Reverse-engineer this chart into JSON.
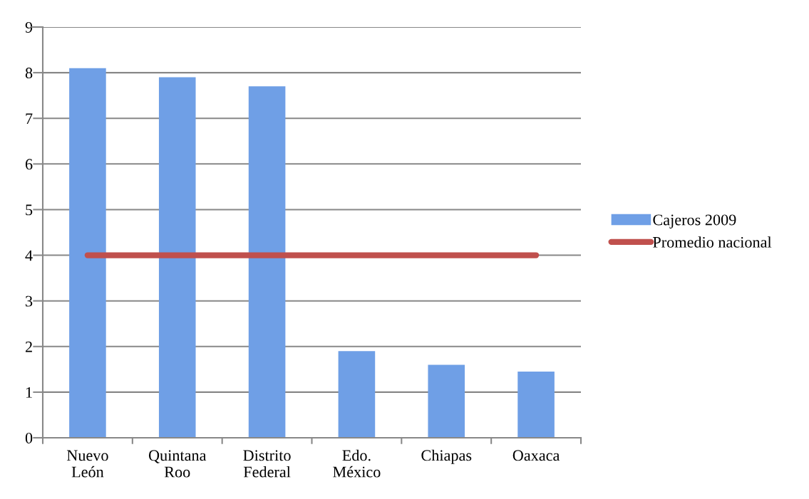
{
  "chart_data": {
    "type": "bar",
    "categories": [
      "Nuevo\nLeón",
      "Quintana\nRoo",
      "Distrito\nFederal",
      "Edo.\nMéxico",
      "Chiapas",
      "Oaxaca"
    ],
    "series": [
      {
        "name": "Cajeros 2009",
        "color": "#6f9fe6",
        "values": [
          8.1,
          7.9,
          7.7,
          1.9,
          1.6,
          1.45
        ]
      },
      {
        "name": "Promedio nacional",
        "type": "line",
        "color": "#c0504d",
        "values": [
          4,
          4,
          4,
          4,
          4,
          4
        ]
      }
    ],
    "ylim": [
      0,
      9
    ],
    "yticks": [
      0,
      1,
      2,
      3,
      4,
      5,
      6,
      7,
      8,
      9
    ],
    "grid": "y",
    "legend": "right",
    "marker": "none"
  }
}
